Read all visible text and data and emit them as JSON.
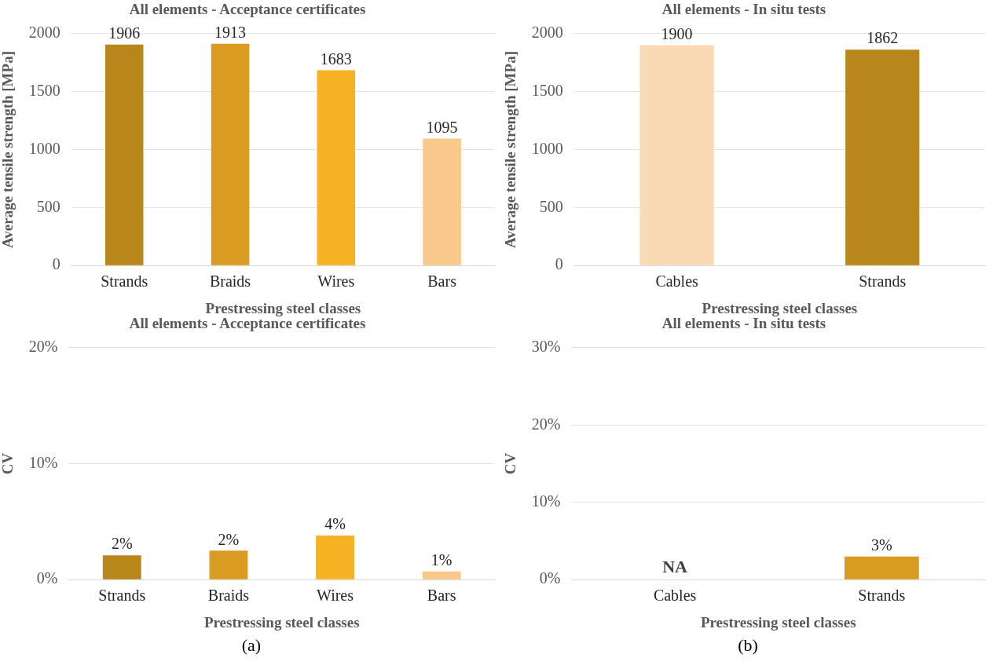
{
  "chart_data": [
    {
      "type": "bar",
      "title": "All elements - Acceptance certificates",
      "xlabel": "Prestressing steel classes",
      "ylabel": "Average tensile strength [MPa]",
      "categories": [
        "Strands",
        "Braids",
        "Wires",
        "Bars"
      ],
      "values": [
        1906,
        1913,
        1683,
        1095
      ],
      "colors": [
        "#b8861b",
        "#d99b22",
        "#f5b223",
        "#f8c98a"
      ],
      "ylim": [
        0,
        2000
      ],
      "yticks": [
        0,
        500,
        1000,
        1500,
        2000
      ],
      "grid": "y",
      "data_labels": true
    },
    {
      "type": "bar",
      "title": "All elements - In situ tests",
      "xlabel": "Prestressing steel classes",
      "ylabel": "Average tensile strength [MPa]",
      "categories": [
        "Cables",
        "Strands"
      ],
      "values": [
        1900,
        1862
      ],
      "colors": [
        "#f9dab3",
        "#b8861b"
      ],
      "ylim": [
        0,
        2000
      ],
      "yticks": [
        0,
        500,
        1000,
        1500,
        2000
      ],
      "grid": "y",
      "data_labels": true
    },
    {
      "type": "bar",
      "title": "All elements - Acceptance certificates",
      "xlabel": "Prestressing steel classes",
      "ylabel": "CV",
      "categories": [
        "Strands",
        "Braids",
        "Wires",
        "Bars"
      ],
      "values": [
        2.1,
        2.5,
        3.8,
        0.7
      ],
      "value_labels": [
        "2%",
        "2%",
        "4%",
        "1%"
      ],
      "colors": [
        "#b8861b",
        "#d99b22",
        "#f5b223",
        "#f8c98a"
      ],
      "ylim": [
        0,
        20
      ],
      "yticks": [
        {
          "value": 0,
          "label": "0%"
        },
        {
          "value": 10,
          "label": "10%"
        },
        {
          "value": 20,
          "label": "20%"
        }
      ],
      "grid": "y",
      "annotations": [
        "(a)"
      ]
    },
    {
      "type": "bar",
      "title": "All elements - In situ tests",
      "xlabel": "Prestressing steel classes",
      "ylabel": "CV",
      "categories": [
        "Cables",
        "Strands"
      ],
      "values": [
        null,
        3.0
      ],
      "value_labels": [
        "NA",
        "3%"
      ],
      "colors": [
        "#f9dab3",
        "#d99b22"
      ],
      "ylim": [
        0,
        30
      ],
      "yticks": [
        {
          "value": 0,
          "label": "0%"
        },
        {
          "value": 10,
          "label": "10%"
        },
        {
          "value": 20,
          "label": "20%"
        },
        {
          "value": 30,
          "label": "30%"
        }
      ],
      "grid": "y",
      "annotations": [
        "(b)"
      ]
    }
  ]
}
